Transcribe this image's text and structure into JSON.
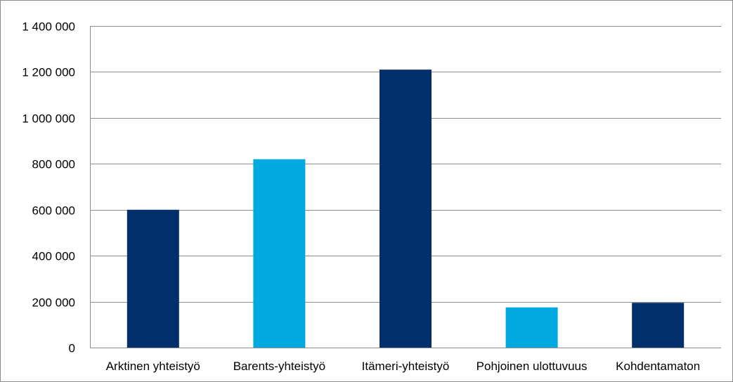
{
  "chart_data": {
    "type": "bar",
    "title": "",
    "xlabel": "",
    "ylabel": "",
    "categories": [
      "Arktinen yhteistyö",
      "Barents-yhteistyö",
      "Itämeri-yhteistyö",
      "Pohjoinen ulottuvuus",
      "Kohdentamaton"
    ],
    "values": [
      600000,
      820000,
      1210000,
      175000,
      195000
    ],
    "bar_colors": [
      "#002F6C",
      "#00A9E0",
      "#002F6C",
      "#00A9E0",
      "#002F6C"
    ],
    "ylim": [
      0,
      1400000
    ],
    "yticks": [
      0,
      200000,
      400000,
      600000,
      800000,
      1000000,
      1200000,
      1400000
    ],
    "ytick_labels": [
      "0",
      "200 000",
      "400 000",
      "600 000",
      "800 000",
      "1 000 000",
      "1 200 000",
      "1 400 000"
    ],
    "grid": true,
    "gridline_color": "#8c8c8c",
    "legend": "none"
  }
}
